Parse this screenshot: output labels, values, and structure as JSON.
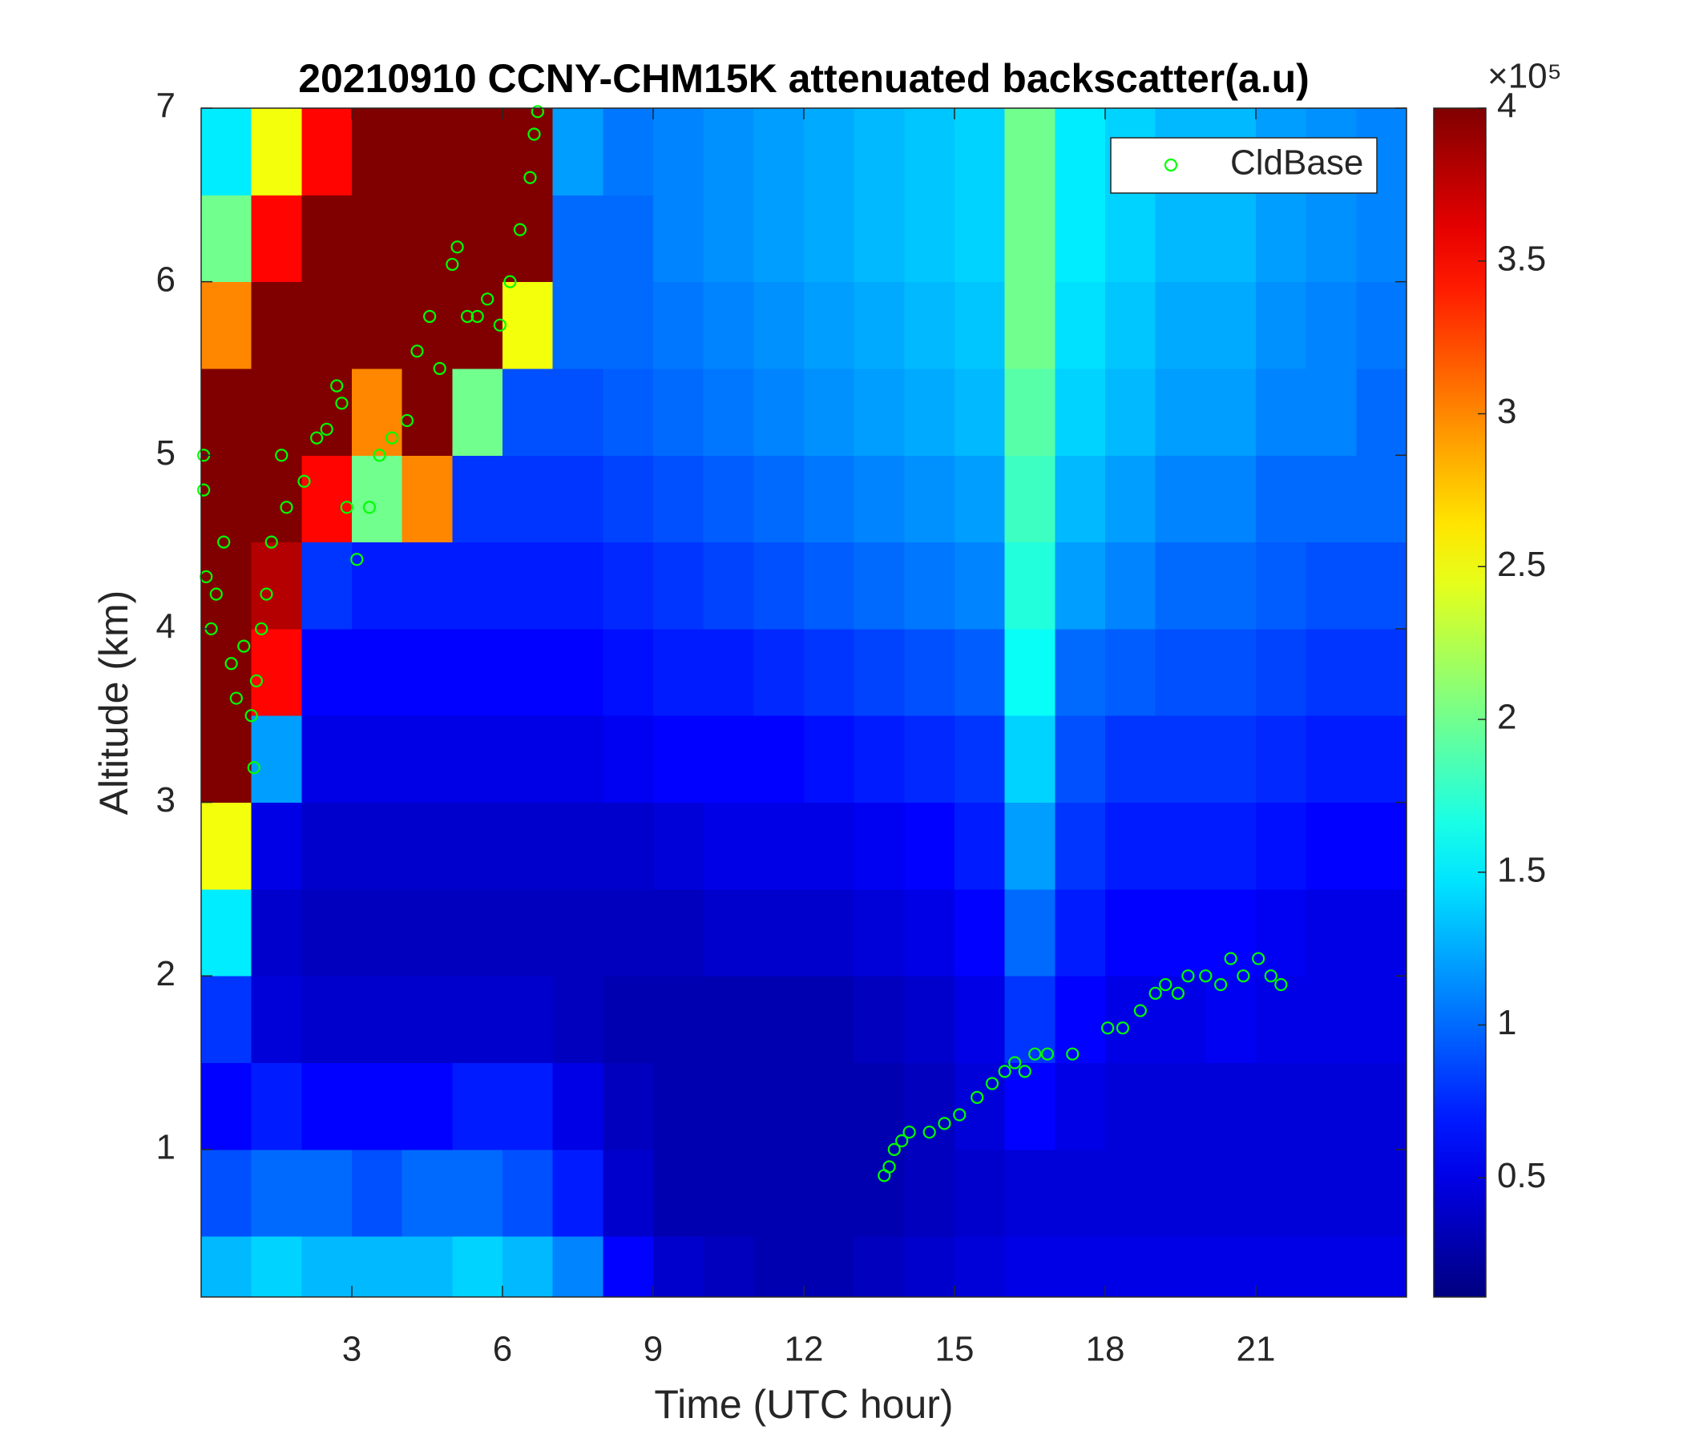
{
  "chart_data": {
    "type": "heatmap",
    "title": "20210910 CCNY-CHM15K attenuated backscatter(a.u)",
    "xlabel": "Time (UTC hour)",
    "ylabel": "Altitude (km)",
    "colormap": "jet",
    "x_bins": [
      0,
      1,
      2,
      3,
      4,
      5,
      6,
      7,
      8,
      9,
      10,
      11,
      12,
      13,
      14,
      15,
      16,
      17,
      18,
      19,
      20,
      21,
      22,
      23,
      24
    ],
    "y_bins": [
      0.15,
      0.5,
      1,
      1.5,
      2,
      2.5,
      3,
      3.5,
      4,
      4.5,
      5,
      5.5,
      6,
      6.5,
      7
    ],
    "z": [
      [
        1.3,
        1.4,
        1.3,
        1.3,
        1.3,
        1.4,
        1.3,
        1.1,
        0.6,
        0.4,
        0.35,
        0.3,
        0.3,
        0.35,
        0.4,
        0.45,
        0.5,
        0.5,
        0.5,
        0.5,
        0.5,
        0.5,
        0.5,
        0.5
      ],
      [
        0.9,
        1.0,
        1.0,
        0.9,
        1.0,
        1.0,
        0.9,
        0.7,
        0.4,
        0.3,
        0.3,
        0.3,
        0.3,
        0.3,
        0.35,
        0.4,
        0.45,
        0.45,
        0.45,
        0.45,
        0.45,
        0.45,
        0.45,
        0.45
      ],
      [
        0.6,
        0.7,
        0.6,
        0.6,
        0.6,
        0.7,
        0.7,
        0.5,
        0.35,
        0.3,
        0.3,
        0.3,
        0.3,
        0.3,
        0.35,
        0.45,
        0.6,
        0.5,
        0.45,
        0.45,
        0.45,
        0.45,
        0.45,
        0.45
      ],
      [
        0.8,
        0.45,
        0.4,
        0.4,
        0.4,
        0.4,
        0.4,
        0.35,
        0.3,
        0.3,
        0.3,
        0.3,
        0.3,
        0.35,
        0.4,
        0.5,
        0.8,
        0.6,
        0.5,
        0.5,
        0.55,
        0.5,
        0.5,
        0.5
      ],
      [
        1.5,
        0.4,
        0.35,
        0.35,
        0.35,
        0.35,
        0.35,
        0.35,
        0.35,
        0.35,
        0.4,
        0.4,
        0.4,
        0.45,
        0.5,
        0.6,
        1.0,
        0.7,
        0.6,
        0.6,
        0.6,
        0.55,
        0.5,
        0.5
      ],
      [
        2.5,
        0.5,
        0.4,
        0.4,
        0.4,
        0.4,
        0.4,
        0.4,
        0.4,
        0.45,
        0.5,
        0.5,
        0.5,
        0.55,
        0.6,
        0.7,
        1.2,
        0.8,
        0.7,
        0.7,
        0.7,
        0.65,
        0.6,
        0.6
      ],
      [
        4,
        1.2,
        0.5,
        0.5,
        0.5,
        0.5,
        0.5,
        0.5,
        0.55,
        0.6,
        0.6,
        0.6,
        0.65,
        0.7,
        0.75,
        0.8,
        1.4,
        0.9,
        0.8,
        0.8,
        0.8,
        0.75,
        0.7,
        0.7
      ],
      [
        4,
        3.5,
        0.6,
        0.6,
        0.6,
        0.6,
        0.6,
        0.6,
        0.65,
        0.7,
        0.7,
        0.75,
        0.8,
        0.85,
        0.9,
        0.95,
        1.6,
        1.0,
        0.95,
        0.9,
        0.9,
        0.85,
        0.8,
        0.8
      ],
      [
        4,
        3.8,
        0.8,
        0.7,
        0.7,
        0.7,
        0.7,
        0.7,
        0.75,
        0.8,
        0.85,
        0.9,
        0.95,
        1.0,
        1.05,
        1.1,
        1.7,
        1.2,
        1.1,
        1.0,
        1.0,
        0.95,
        0.9,
        0.9
      ],
      [
        4,
        4,
        3.5,
        2.0,
        3.0,
        0.8,
        0.8,
        0.8,
        0.85,
        0.9,
        0.95,
        1.0,
        1.05,
        1.1,
        1.15,
        1.2,
        1.8,
        1.3,
        1.2,
        1.1,
        1.1,
        1.0,
        1.0,
        1.0
      ],
      [
        4,
        4,
        4,
        3.0,
        4,
        2.0,
        0.9,
        0.9,
        0.95,
        1.0,
        1.05,
        1.1,
        1.15,
        1.2,
        1.25,
        1.3,
        1.9,
        1.4,
        1.3,
        1.2,
        1.2,
        1.1,
        1.1,
        1.0
      ],
      [
        3.0,
        4,
        4,
        4,
        4,
        4,
        2.5,
        1.0,
        1.0,
        1.05,
        1.1,
        1.15,
        1.2,
        1.25,
        1.3,
        1.35,
        2.0,
        1.45,
        1.35,
        1.25,
        1.25,
        1.15,
        1.1,
        1.05
      ],
      [
        2.0,
        3.5,
        4,
        4,
        4,
        4,
        4,
        1.0,
        1.0,
        1.1,
        1.15,
        1.2,
        1.25,
        1.3,
        1.35,
        1.4,
        2.0,
        1.5,
        1.4,
        1.3,
        1.3,
        1.2,
        1.15,
        1.1
      ],
      [
        1.5,
        2.5,
        3.5,
        4,
        4,
        4,
        4,
        1.2,
        1.05,
        1.1,
        1.15,
        1.2,
        1.25,
        1.3,
        1.35,
        1.4,
        2.0,
        1.5,
        1.4,
        1.3,
        1.3,
        1.2,
        1.15,
        1.1
      ]
    ],
    "clim": [
      0.11,
      4
    ],
    "colorbar_ticks": [
      0.5,
      1,
      1.5,
      2,
      2.5,
      3,
      3.5,
      4
    ],
    "colorbar_multiplier": "×10⁵",
    "xlim": [
      0,
      24
    ],
    "ylim": [
      0.15,
      7
    ],
    "xticks": [
      3,
      6,
      9,
      12,
      15,
      18,
      21
    ],
    "yticks": [
      1,
      2,
      3,
      4,
      5,
      6,
      7
    ],
    "legend": "upper right",
    "series": [
      {
        "name": "CldBase",
        "type": "scatter",
        "marker": "open-circle",
        "color": "#00ff00",
        "x": [
          0.05,
          0.05,
          0.1,
          0.2,
          0.3,
          0.45,
          0.6,
          0.7,
          0.85,
          1.0,
          1.05,
          1.1,
          1.2,
          1.3,
          1.4,
          1.6,
          1.7,
          2.05,
          2.3,
          2.5,
          2.7,
          2.8,
          2.9,
          3.1,
          3.35,
          3.55,
          3.8,
          4.1,
          4.3,
          4.55,
          4.75,
          5.0,
          5.1,
          5.3,
          5.5,
          5.7,
          5.95,
          6.15,
          6.35,
          6.55,
          6.63,
          6.7,
          13.6,
          13.7,
          13.8,
          13.95,
          14.1,
          14.5,
          14.8,
          15.1,
          15.45,
          15.75,
          16.0,
          16.2,
          16.4,
          16.6,
          16.85,
          17.35,
          18.05,
          18.35,
          18.7,
          19.0,
          19.2,
          19.45,
          19.65,
          20.0,
          20.3,
          20.5,
          20.75,
          21.05,
          21.3,
          21.5
        ],
        "y": [
          4.8,
          5.0,
          4.3,
          4.0,
          4.2,
          4.5,
          3.8,
          3.6,
          3.9,
          3.5,
          3.2,
          3.7,
          4.0,
          4.2,
          4.5,
          5.0,
          4.7,
          4.85,
          5.1,
          5.15,
          5.4,
          5.3,
          4.7,
          4.4,
          4.7,
          5.0,
          5.1,
          5.2,
          5.6,
          5.8,
          5.5,
          6.1,
          6.2,
          5.8,
          5.8,
          5.9,
          5.75,
          6.0,
          6.3,
          6.6,
          6.85,
          6.98,
          0.85,
          0.9,
          1.0,
          1.05,
          1.1,
          1.1,
          1.15,
          1.2,
          1.3,
          1.38,
          1.45,
          1.5,
          1.45,
          1.55,
          1.55,
          1.55,
          1.7,
          1.7,
          1.8,
          1.9,
          1.95,
          1.9,
          2.0,
          2.0,
          1.95,
          2.1,
          2.0,
          2.1,
          2.0,
          1.95
        ]
      }
    ]
  }
}
